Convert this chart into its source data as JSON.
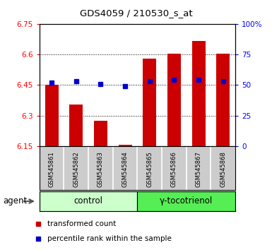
{
  "title": "GDS4059 / 210530_s_at",
  "samples": [
    "GSM545861",
    "GSM545862",
    "GSM545863",
    "GSM545864",
    "GSM545865",
    "GSM545866",
    "GSM545867",
    "GSM545868"
  ],
  "red_values": [
    6.45,
    6.355,
    6.275,
    6.158,
    6.578,
    6.603,
    6.665,
    6.603
  ],
  "blue_values": [
    52,
    53,
    51,
    49,
    53,
    54,
    54,
    53
  ],
  "ymin": 6.15,
  "ymax": 6.75,
  "yticks": [
    6.15,
    6.3,
    6.45,
    6.6,
    6.75
  ],
  "right_yticks": [
    0,
    25,
    50,
    75,
    100
  ],
  "bar_color": "#cc0000",
  "dot_color": "#0000cc",
  "control_bg": "#ccffcc",
  "treatment_bg": "#55ee55",
  "sample_bg": "#cccccc",
  "group_control_label": "control",
  "group_treatment_label": "γ-tocotrienol",
  "agent_label": "agent",
  "legend_red": "transformed count",
  "legend_blue": "percentile rank within the sample"
}
